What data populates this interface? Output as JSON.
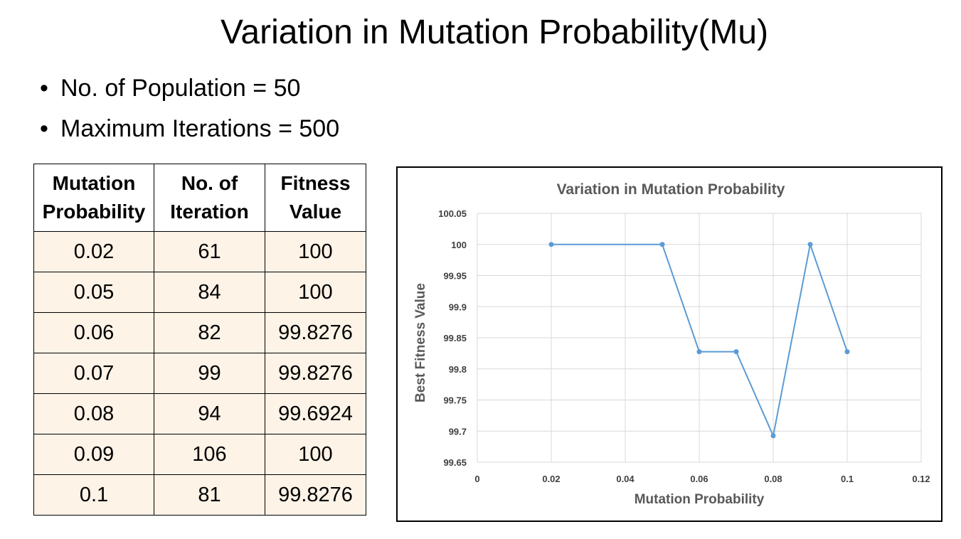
{
  "slide": {
    "title": "Variation in Mutation Probability(Mu)",
    "bullets": [
      "No. of Population = 50",
      "Maximum Iterations = 500"
    ],
    "bullet_glyph": "•"
  },
  "table": {
    "headers": [
      [
        "Mutation",
        "Probability"
      ],
      [
        "No. of",
        "Iteration"
      ],
      [
        "Fitness",
        "Value"
      ]
    ],
    "rows": [
      [
        "0.02",
        "61",
        "100"
      ],
      [
        "0.05",
        "84",
        "100"
      ],
      [
        "0.06",
        "82",
        "99.8276"
      ],
      [
        "0.07",
        "99",
        "99.8276"
      ],
      [
        "0.08",
        "94",
        "99.6924"
      ],
      [
        "0.09",
        "106",
        "100"
      ],
      [
        "0.1",
        "81",
        "99.8276"
      ]
    ]
  },
  "chart_data": {
    "type": "line",
    "title": "Variation in Mutation Probability",
    "xlabel": "Mutation Probability",
    "ylabel": "Best  Fitness Value",
    "x": [
      0.02,
      0.05,
      0.06,
      0.07,
      0.08,
      0.09,
      0.1
    ],
    "series": [
      {
        "values": [
          100,
          100,
          99.8276,
          99.8276,
          99.6924,
          100,
          99.8276
        ]
      }
    ],
    "xlim": [
      0,
      0.12
    ],
    "ylim": [
      99.65,
      100.05
    ],
    "xticks": [
      "0",
      "0.02",
      "0.04",
      "0.06",
      "0.08",
      "0.1",
      "0.12"
    ],
    "yticks": [
      "99.65",
      "99.7",
      "99.75",
      "99.8",
      "99.85",
      "99.9",
      "99.95",
      "100",
      "100.05"
    ],
    "grid": true,
    "legend": "none",
    "line_color": "#5b9bd5",
    "grid_color": "#d9d9d9"
  }
}
